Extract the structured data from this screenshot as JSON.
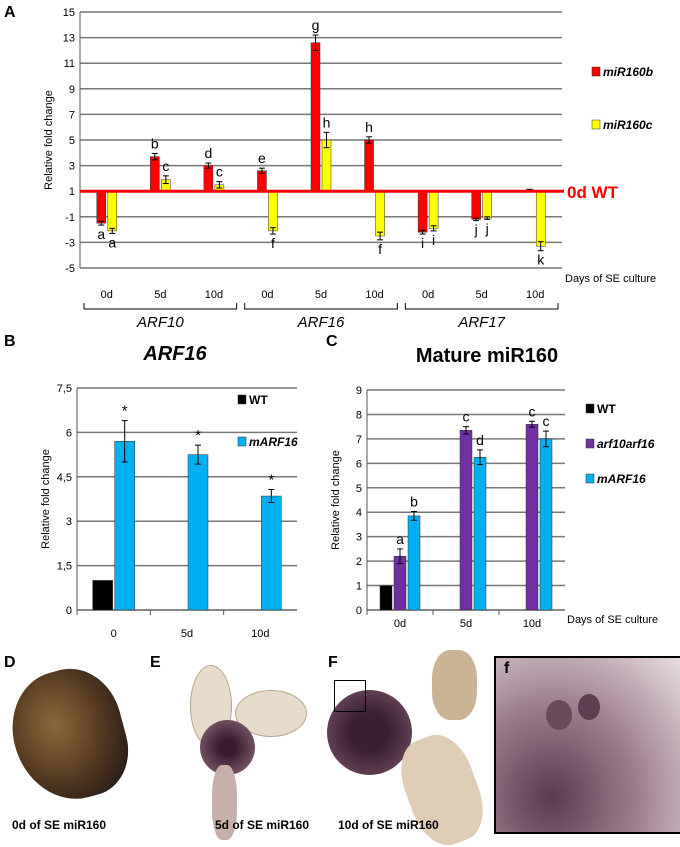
{
  "panels": {
    "A": "A",
    "B": "B",
    "C": "C",
    "D": "D",
    "E": "E",
    "F": "F",
    "f": "f"
  },
  "chart_data": [
    {
      "type": "bar",
      "panel": "A",
      "ylabel": "Relative fold change",
      "xlabel": "Days of SE culture",
      "ylim": [
        -5,
        15
      ],
      "yticks": [
        -5,
        -3,
        -1,
        1,
        3,
        5,
        7,
        9,
        11,
        13,
        15
      ],
      "baseline": 1,
      "baseline_label": "0d WT",
      "baseline_color": "#ff0000",
      "categories": [
        "0d",
        "5d",
        "10d",
        "0d",
        "5d",
        "10d",
        "0d",
        "5d",
        "10d"
      ],
      "groups": [
        {
          "label": "ARF10",
          "span": [
            0,
            2
          ]
        },
        {
          "label": "ARF16",
          "span": [
            3,
            5
          ]
        },
        {
          "label": "ARF17",
          "span": [
            6,
            8
          ]
        }
      ],
      "series": [
        {
          "name": "miR160b",
          "color": "#ff0000",
          "values": [
            -1.5,
            3.7,
            3.0,
            2.6,
            12.6,
            5.0,
            -2.2,
            -1.2,
            1.1
          ],
          "errors": [
            0.15,
            0.25,
            0.2,
            0.2,
            0.6,
            0.25,
            0.15,
            0.1,
            0.05
          ],
          "letters": [
            "a",
            "b",
            "d",
            "e",
            "g",
            "h",
            "i",
            "j",
            ""
          ]
        },
        {
          "name": "miR160c",
          "color": "#ffff00",
          "values": [
            -2.1,
            1.9,
            1.5,
            -2.1,
            5.0,
            -2.5,
            -1.9,
            -1.1,
            -3.3
          ],
          "errors": [
            0.2,
            0.3,
            0.25,
            0.25,
            0.6,
            0.3,
            0.2,
            0.1,
            0.35
          ],
          "letters": [
            "a",
            "c",
            "c",
            "f",
            "h",
            "f",
            "i",
            "j",
            "k"
          ]
        }
      ],
      "grid": true,
      "legend": "right"
    },
    {
      "type": "bar",
      "panel": "B",
      "title": "ARF16",
      "ylabel": "Relative fold change",
      "ylim": [
        0,
        7.5
      ],
      "yticks": [
        "0",
        "1,5",
        "3",
        "4,5",
        "6",
        "7,5"
      ],
      "categories": [
        "0",
        "5d",
        "10d"
      ],
      "series": [
        {
          "name": "WT",
          "color": "#000000",
          "values": [
            1.0,
            null,
            null
          ],
          "errors": [
            0,
            0,
            0
          ],
          "letters": [
            "",
            "",
            ""
          ]
        },
        {
          "name": "mARF16",
          "color": "#00b0f0",
          "values": [
            5.7,
            5.25,
            3.85
          ],
          "errors": [
            0.7,
            0.32,
            0.22
          ],
          "letters": [
            "*",
            "*",
            "*"
          ]
        }
      ],
      "grid": true,
      "legend": "top-right"
    },
    {
      "type": "bar",
      "panel": "C",
      "title": "Mature miR160",
      "ylabel": "Relative fold change",
      "xlabel": "Days of SE culture",
      "ylim": [
        0,
        9
      ],
      "yticks": [
        "0",
        "1",
        "2",
        "3",
        "4",
        "5",
        "6",
        "7",
        "8",
        "9"
      ],
      "categories": [
        "0d",
        "5d",
        "10d"
      ],
      "series": [
        {
          "name": "WT",
          "color": "#000000",
          "values": [
            1.0,
            null,
            null
          ],
          "errors": [
            0,
            0,
            0
          ],
          "letters": [
            "",
            "",
            ""
          ]
        },
        {
          "name": "arf10arf16",
          "color": "#7030a0",
          "values": [
            2.2,
            7.35,
            7.6
          ],
          "errors": [
            0.3,
            0.15,
            0.12
          ],
          "letters": [
            "a",
            "c",
            "c"
          ]
        },
        {
          "name": "mARF16",
          "color": "#00b0f0",
          "values": [
            3.85,
            6.25,
            7.0
          ],
          "errors": [
            0.18,
            0.3,
            0.32
          ],
          "letters": [
            "b",
            "d",
            "c"
          ]
        }
      ],
      "grid": true,
      "legend": "right"
    }
  ],
  "photos": {
    "D": "0d of SE  miR160",
    "E": "5d of SE  miR160",
    "F": "10d of SE miR160"
  }
}
